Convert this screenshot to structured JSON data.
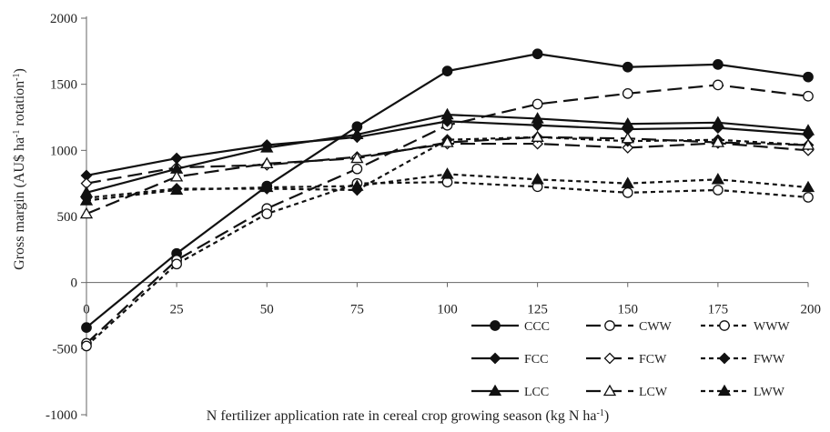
{
  "chart_data": {
    "type": "line",
    "title": "",
    "xlabel": "N fertilizer  application rate in cereal crop growing season (kg N ha",
    "xlabel_sup": "-1",
    "xlabel_tail": ")",
    "ylabel_parts": [
      {
        "text": "Gross margin  (AU$ ha",
        "sup": false
      },
      {
        "text": "-1",
        "sup": true
      },
      {
        "text": " rotation",
        "sup": false
      },
      {
        "text": "-1",
        "sup": true
      },
      {
        "text": ")",
        "sup": false
      }
    ],
    "x": [
      0,
      25,
      50,
      75,
      100,
      125,
      150,
      175,
      200
    ],
    "x_tick_labels": [
      "0",
      "25",
      "50",
      "75",
      "100",
      "125",
      "150",
      "175",
      "200"
    ],
    "y_tick_labels": [
      "-1000",
      "-500",
      "0",
      "500",
      "1000",
      "1500",
      "2000"
    ],
    "y_ticks": [
      -1000,
      -500,
      0,
      500,
      1000,
      1500,
      2000
    ],
    "xlim": [
      0,
      200
    ],
    "ylim": [
      -1000,
      2000
    ],
    "grid": false,
    "legend_position": "bottom-right",
    "series": [
      {
        "name": "CCC",
        "marker": "circle-filled",
        "dash": "solid",
        "values": [
          -340,
          220,
          730,
          1180,
          1600,
          1730,
          1630,
          1650,
          1555
        ]
      },
      {
        "name": "CWW",
        "marker": "circle-open",
        "dash": "long",
        "values": [
          -460,
          170,
          560,
          860,
          1190,
          1350,
          1430,
          1495,
          1410
        ]
      },
      {
        "name": "WWW",
        "marker": "circle-open",
        "dash": "short",
        "values": [
          -480,
          140,
          520,
          750,
          760,
          725,
          680,
          700,
          645
        ]
      },
      {
        "name": "FCC",
        "marker": "diamond-filled",
        "dash": "solid",
        "values": [
          810,
          940,
          1040,
          1100,
          1220,
          1190,
          1160,
          1170,
          1120
        ]
      },
      {
        "name": "FCW",
        "marker": "diamond-open",
        "dash": "long",
        "values": [
          750,
          870,
          890,
          950,
          1050,
          1050,
          1020,
          1055,
          1000
        ]
      },
      {
        "name": "FWW",
        "marker": "diamond-filled",
        "dash": "short",
        "values": [
          640,
          710,
          710,
          700,
          1080,
          1100,
          1070,
          1080,
          1040
        ]
      },
      {
        "name": "LCC",
        "marker": "triangle-filled",
        "dash": "solid",
        "values": [
          680,
          860,
          1020,
          1120,
          1270,
          1240,
          1200,
          1210,
          1150
        ]
      },
      {
        "name": "LCW",
        "marker": "triangle-open",
        "dash": "long",
        "values": [
          520,
          800,
          900,
          940,
          1060,
          1100,
          1090,
          1060,
          1040
        ]
      },
      {
        "name": "LWW",
        "marker": "triangle-filled",
        "dash": "short",
        "values": [
          620,
          700,
          720,
          730,
          820,
          780,
          750,
          780,
          720
        ]
      }
    ],
    "colors": {
      "line": "#111111",
      "axis": "#666666",
      "background": "#ffffff"
    }
  }
}
